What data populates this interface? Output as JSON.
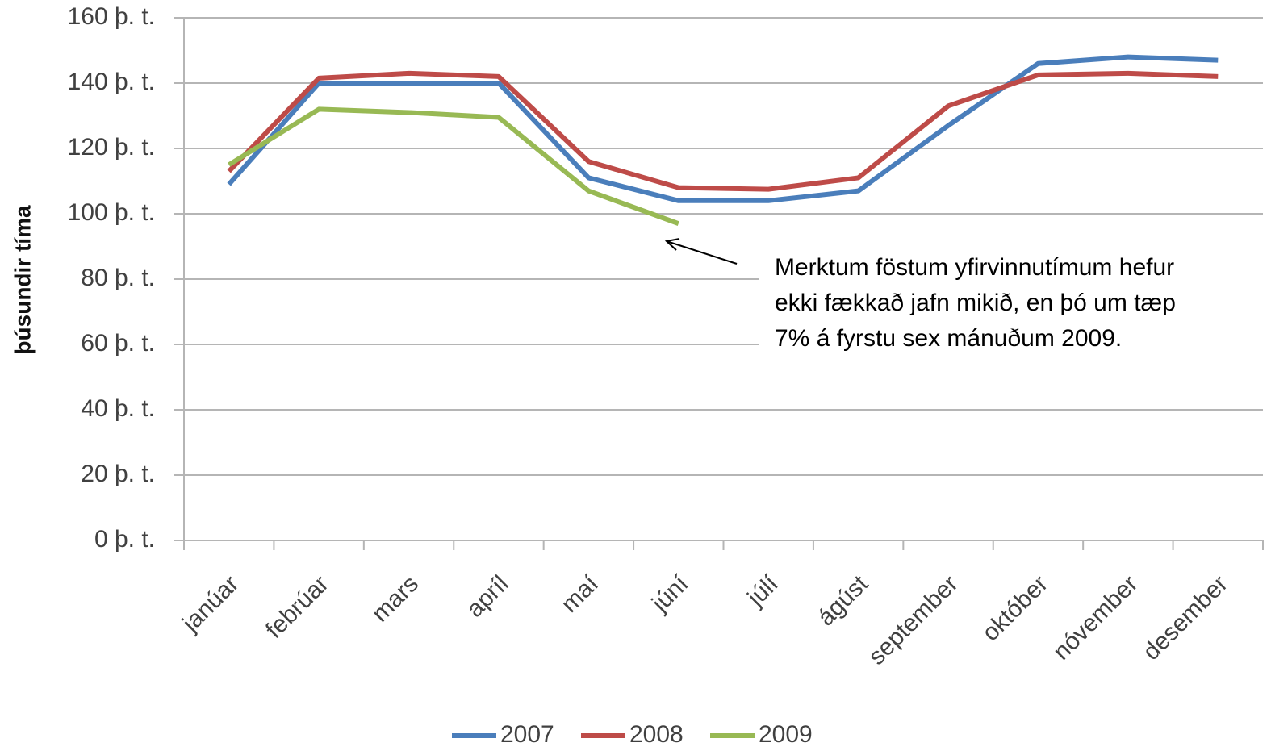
{
  "chart_data": {
    "type": "line",
    "ylabel": "þúsundir tíma",
    "categories": [
      "janúar",
      "febrúar",
      "mars",
      "apríl",
      "maí",
      "júní",
      "júlí",
      "ágúst",
      "september",
      "október",
      "nóvember",
      "desember"
    ],
    "series": [
      {
        "name": "2007",
        "color": "#4a7ebb",
        "values": [
          109,
          140,
          140,
          140,
          111,
          104,
          104,
          107,
          127,
          146,
          148,
          147
        ]
      },
      {
        "name": "2008",
        "color": "#be4b48",
        "values": [
          113,
          141.5,
          143,
          142,
          116,
          108,
          107.5,
          111,
          133,
          142.5,
          143,
          142
        ]
      },
      {
        "name": "2009",
        "color": "#98b954",
        "values": [
          115,
          132,
          131,
          129.5,
          107,
          97,
          null,
          null,
          null,
          null,
          null,
          null
        ]
      }
    ],
    "ylim": [
      0,
      160
    ],
    "yticks": [
      {
        "value": 0,
        "label": "0 þ. t."
      },
      {
        "value": 20,
        "label": "20 þ. t."
      },
      {
        "value": 40,
        "label": "40 þ. t."
      },
      {
        "value": 60,
        "label": "60 þ. t."
      },
      {
        "value": 80,
        "label": "80 þ. t."
      },
      {
        "value": 100,
        "label": "100 þ. t."
      },
      {
        "value": 120,
        "label": "120 þ. t."
      },
      {
        "value": 140,
        "label": "140 þ. t."
      },
      {
        "value": 160,
        "label": "160 þ. t."
      }
    ],
    "grid": true,
    "legend": "bottom",
    "annotation": [
      "Merktum föstum yfirvinnutímum hefur",
      "ekki fækkað jafn mikið, en þó um tæp",
      "7% á fyrstu sex mánuðum 2009."
    ]
  }
}
